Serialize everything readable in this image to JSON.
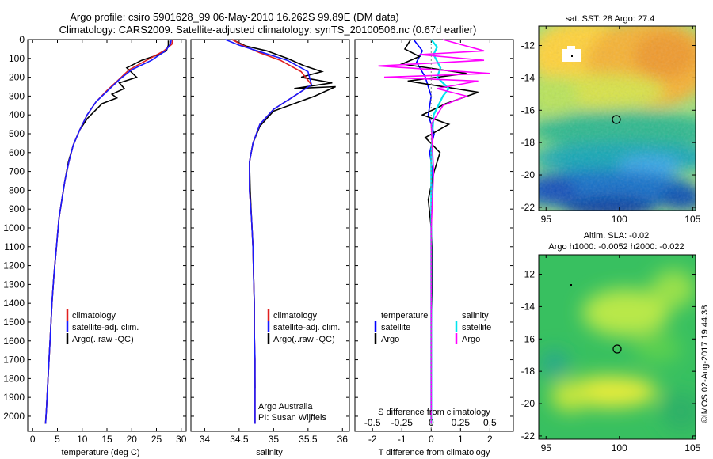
{
  "titles": {
    "line1": "Argo profile: csiro 5901628_99 06-May-2010 16.262S 99.89E (DM data)",
    "line2": "Climatology: CARS2009. Satellite-adjusted climatology: synTS_20100506.nc (0.67d earlier)"
  },
  "sst_title": "sat. SST: 28 Argo: 27.4",
  "sla_title1": "Altim. SLA: -0.02",
  "sla_title2": "Argo h1000: -0.0052 h2000: -0.022",
  "credit": {
    "ownership": "Argo Australia",
    "pi": "PI: Susan Wijffels",
    "stamp": "©IMOS 02-Aug-2017 19:44:38"
  },
  "depth_ticks": [
    "0",
    "100",
    "200",
    "300",
    "400",
    "500",
    "600",
    "700",
    "800",
    "900",
    "1000",
    "1100",
    "1200",
    "1300",
    "1400",
    "1500",
    "1600",
    "1700",
    "1800",
    "1900",
    "2000"
  ],
  "temp_ticks": [
    "0",
    "5",
    "10",
    "15",
    "20",
    "25",
    "30"
  ],
  "sal_ticks": [
    "34",
    "34.5",
    "35",
    "35.5",
    "36"
  ],
  "diff_T_ticks": [
    "-2",
    "-1",
    "0",
    "1",
    "2"
  ],
  "diff_S_ticks": [
    "-0.5",
    "-0.25",
    "0",
    "0.25",
    "0.5"
  ],
  "lat_ticks": [
    "-12",
    "-14",
    "-16",
    "-18",
    "-20",
    "-22"
  ],
  "lon_ticks": [
    "95",
    "100",
    "105"
  ],
  "axis_labels": {
    "temp": "temperature (deg C)",
    "sal": "salinity",
    "diff_S": "S difference from climatology",
    "diff_T": "T difference from climatology"
  },
  "legend_profile": [
    "climatology",
    "satellite-adj. clim.",
    "Argo(..raw -QC)"
  ],
  "legend_diff": {
    "temp_head": "temperature",
    "sal_head": "salinity",
    "satellite": "satellite",
    "argo": "Argo"
  },
  "colors": {
    "climatology": "#e02020",
    "satellite_adj": "#1a1aff",
    "argo": "#000000",
    "temp_sat": "#0000ff",
    "temp_argo": "#000000",
    "sal_sat": "#00e5ee",
    "sal_argo": "#ff00ff"
  },
  "chart_data": [
    {
      "type": "line",
      "name": "temperature",
      "xlabel": "temperature (deg C)",
      "xlim": [
        -1,
        31
      ],
      "ylim": [
        2080,
        0
      ],
      "y_axis": "depth",
      "series": [
        {
          "name": "climatology",
          "x": [
            28.3,
            28.1,
            26.5,
            23.0,
            19.5,
            17.5,
            15.0,
            12.8,
            11.0,
            9.5,
            8.2,
            7.3,
            6.5,
            5.9,
            5.3,
            4.8,
            4.3,
            3.9,
            3.6,
            3.3,
            3.0,
            2.8,
            2.6
          ],
          "y": [
            0,
            25,
            60,
            110,
            160,
            210,
            270,
            330,
            400,
            480,
            560,
            650,
            750,
            850,
            950,
            1100,
            1250,
            1400,
            1550,
            1700,
            1850,
            1950,
            2040
          ]
        },
        {
          "name": "satellite-adj. clim.",
          "x": [
            28.0,
            27.8,
            26.8,
            24.0,
            20.0,
            17.6,
            15.2,
            12.8,
            11.0,
            9.5,
            8.2,
            7.3,
            6.5,
            5.9,
            5.3,
            4.8,
            4.3,
            3.9,
            3.6,
            3.3,
            3.0,
            2.8,
            2.6
          ],
          "y": [
            0,
            25,
            60,
            110,
            160,
            210,
            270,
            330,
            400,
            480,
            560,
            650,
            750,
            850,
            950,
            1100,
            1250,
            1400,
            1550,
            1700,
            1850,
            1950,
            2040
          ]
        },
        {
          "name": "Argo(..raw -QC)",
          "x": [
            27.4,
            27.4,
            27.0,
            25.5,
            22.0,
            19.0,
            21.0,
            17.5,
            18.5,
            16.0,
            17.0,
            14.0,
            12.5,
            11.0,
            9.5,
            8.2,
            7.2,
            6.5,
            5.9,
            5.3,
            4.8,
            4.3,
            3.9,
            3.6,
            3.3,
            3.0,
            2.8,
            2.6
          ],
          "y": [
            5,
            30,
            60,
            80,
            110,
            150,
            200,
            230,
            260,
            290,
            310,
            340,
            380,
            420,
            480,
            560,
            650,
            750,
            850,
            950,
            1100,
            1250,
            1400,
            1550,
            1700,
            1850,
            1950,
            2040
          ]
        }
      ]
    },
    {
      "type": "line",
      "name": "salinity",
      "xlabel": "salinity",
      "xlim": [
        33.8,
        36.1
      ],
      "ylim": [
        2080,
        0
      ],
      "y_axis": "depth",
      "series": [
        {
          "name": "climatology",
          "x": [
            34.4,
            34.55,
            34.8,
            35.1,
            35.4,
            35.55,
            35.3,
            35.0,
            34.8,
            34.7,
            34.65,
            34.65,
            34.68,
            34.7,
            34.71,
            34.72,
            34.72,
            34.73,
            34.73,
            34.73
          ],
          "y": [
            0,
            30,
            70,
            110,
            170,
            240,
            300,
            370,
            450,
            550,
            650,
            800,
            950,
            1100,
            1250,
            1400,
            1550,
            1700,
            1850,
            2040
          ]
        },
        {
          "name": "satellite-adj. clim.",
          "x": [
            34.3,
            34.5,
            34.85,
            35.2,
            35.5,
            35.55,
            35.3,
            35.0,
            34.8,
            34.7,
            34.65,
            34.65,
            34.68,
            34.7,
            34.71,
            34.72,
            34.72,
            34.73,
            34.73,
            34.73
          ],
          "y": [
            0,
            30,
            70,
            110,
            170,
            240,
            300,
            370,
            450,
            550,
            650,
            800,
            950,
            1100,
            1250,
            1400,
            1550,
            1700,
            1850,
            2040
          ]
        },
        {
          "name": "Argo(..raw -QC)",
          "x": [
            34.4,
            34.6,
            34.9,
            35.2,
            35.45,
            35.7,
            35.4,
            35.85,
            35.3,
            35.9,
            35.6,
            35.0,
            34.8,
            34.7,
            34.65,
            34.66,
            34.68,
            34.7,
            34.71,
            34.72,
            34.72,
            34.73
          ],
          "y": [
            0,
            35,
            60,
            100,
            140,
            170,
            200,
            230,
            260,
            250,
            300,
            380,
            460,
            550,
            650,
            800,
            950,
            1100,
            1250,
            1400,
            1550,
            1850
          ]
        }
      ]
    },
    {
      "type": "line",
      "name": "difference from climatology",
      "xlabel": "T difference from climatology",
      "x2label": "S difference from climatology",
      "xlim": [
        -2.6,
        2.8
      ],
      "ylim": [
        2080,
        0
      ],
      "y_axis": "depth",
      "series": [
        {
          "name": "temperature satellite",
          "x": [
            -0.6,
            -0.3,
            -0.5,
            -0.2,
            0.0,
            -0.1,
            0.1,
            -0.05,
            0.05,
            0.02,
            0.0,
            0.01,
            0.0,
            0.0,
            0.0
          ],
          "y": [
            0,
            60,
            120,
            200,
            300,
            400,
            500,
            600,
            700,
            800,
            1000,
            1200,
            1400,
            1700,
            2040
          ]
        },
        {
          "name": "temperature Argo",
          "x": [
            -0.7,
            -0.9,
            -0.4,
            -1.0,
            1.2,
            -0.8,
            1.6,
            0.5,
            -0.3,
            0.6,
            -0.2,
            0.3,
            0.1,
            -0.1,
            0.0,
            0.05,
            0.0,
            0.0
          ],
          "y": [
            0,
            50,
            90,
            130,
            180,
            220,
            280,
            340,
            400,
            450,
            520,
            600,
            700,
            850,
            1000,
            1200,
            1500,
            2040
          ]
        },
        {
          "name": "salinity satellite",
          "x": [
            0.0,
            0.05,
            0.02,
            0.08,
            0.05,
            0.15,
            0.1,
            0.02,
            0.0,
            0.0,
            0.0
          ],
          "y": [
            0,
            40,
            80,
            150,
            200,
            260,
            300,
            400,
            600,
            1000,
            2040
          ]
        },
        {
          "name": "salinity Argo",
          "x": [
            0.1,
            0.45,
            -0.1,
            0.45,
            -0.45,
            0.5,
            -0.4,
            0.4,
            0.05,
            0.3,
            0.1,
            0.0,
            0.02,
            0.0,
            0.0
          ],
          "y": [
            0,
            60,
            80,
            110,
            140,
            180,
            200,
            220,
            260,
            300,
            350,
            450,
            700,
            1000,
            2040
          ]
        }
      ]
    },
    {
      "type": "heatmap",
      "name": "sat. SST",
      "title": "sat. SST: 28 Argo: 27.4",
      "xlim": [
        94.5,
        105.2
      ],
      "ylim": [
        -22.2,
        -10.8
      ],
      "float_position": {
        "lon": 99.89,
        "lat": -16.262
      }
    },
    {
      "type": "heatmap",
      "name": "Altim. SLA",
      "title": "Altim. SLA: -0.02",
      "subtitle": "Argo h1000: -0.0052 h2000: -0.022",
      "xlim": [
        94.5,
        105.2
      ],
      "ylim": [
        -22.2,
        -10.8
      ],
      "float_position": {
        "lon": 99.89,
        "lat": -16.262
      }
    }
  ]
}
